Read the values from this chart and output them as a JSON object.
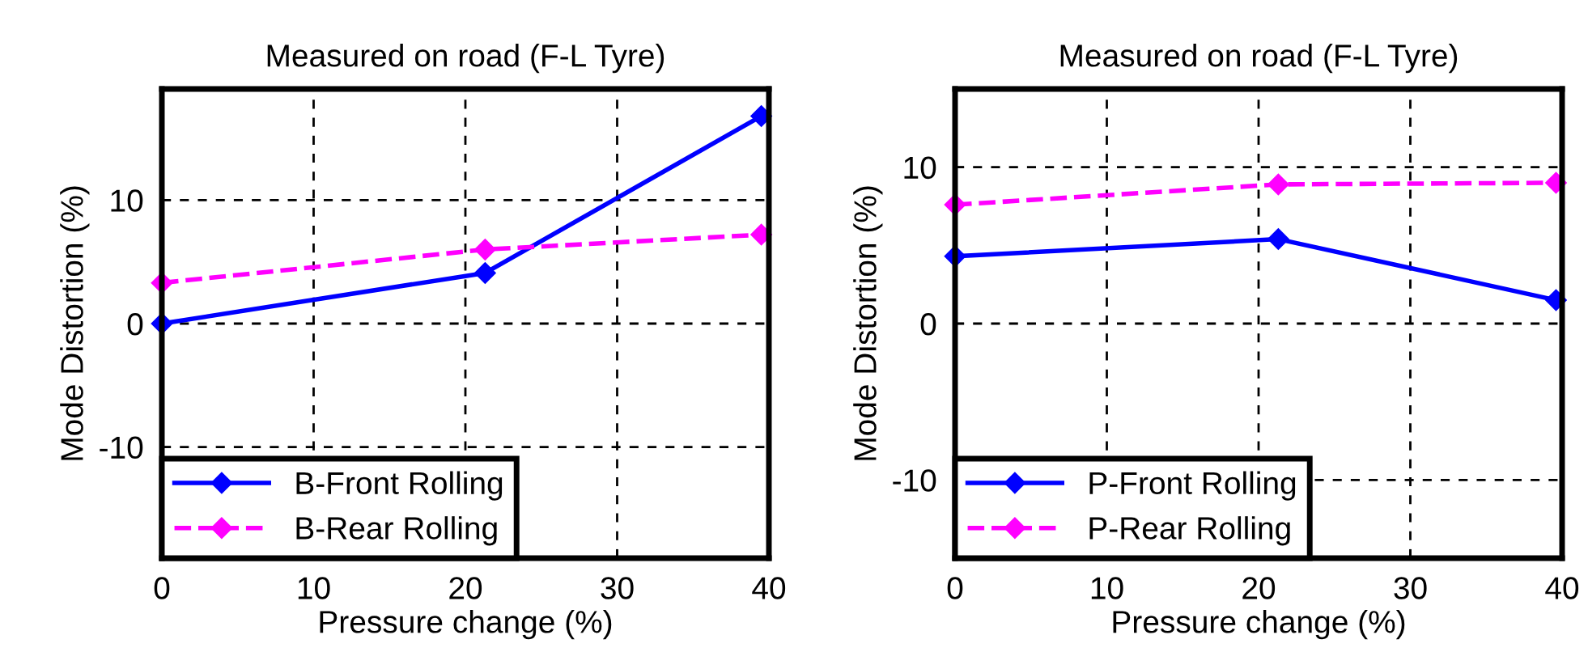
{
  "chart_data": [
    {
      "type": "line",
      "title": "Measured on road (F-L Tyre)",
      "xlabel": "Pressure change (%)",
      "ylabel": "Mode Distortion (%)",
      "xlim": [
        0,
        40
      ],
      "xticks": [
        0,
        10,
        20,
        30,
        40
      ],
      "ylim": [
        -19,
        19
      ],
      "yticks": [
        -10,
        0,
        10
      ],
      "grid": true,
      "legend": "bottom left",
      "marker": "diamond",
      "series": [
        {
          "name": "B-Front Rolling",
          "color": "#0000ff",
          "line_style": "solid",
          "x": [
            0,
            21.3,
            39.5
          ],
          "values": [
            0,
            4.1,
            16.8
          ]
        },
        {
          "name": "B-Rear Rolling",
          "color": "#ff00ff",
          "line_style": "dashed",
          "x": [
            0,
            21.3,
            39.5
          ],
          "values": [
            3.3,
            6.0,
            7.2
          ]
        }
      ]
    },
    {
      "type": "line",
      "title": "Measured on road (F-L Tyre)",
      "xlabel": "Pressure change (%)",
      "ylabel": "Mode Distortion (%)",
      "xlim": [
        0,
        40
      ],
      "xticks": [
        0,
        10,
        20,
        30,
        40
      ],
      "ylim": [
        -15,
        15
      ],
      "yticks": [
        -10,
        0,
        10
      ],
      "grid": true,
      "legend": "bottom left",
      "marker": "diamond",
      "series": [
        {
          "name": "P-Front Rolling",
          "color": "#0000ff",
          "line_style": "solid",
          "x": [
            0,
            21.3,
            39.6
          ],
          "values": [
            4.3,
            5.4,
            1.5
          ]
        },
        {
          "name": "P-Rear Rolling",
          "color": "#ff00ff",
          "line_style": "dashed",
          "x": [
            0,
            21.3,
            39.6
          ],
          "values": [
            7.6,
            8.9,
            9.0
          ]
        }
      ]
    }
  ]
}
